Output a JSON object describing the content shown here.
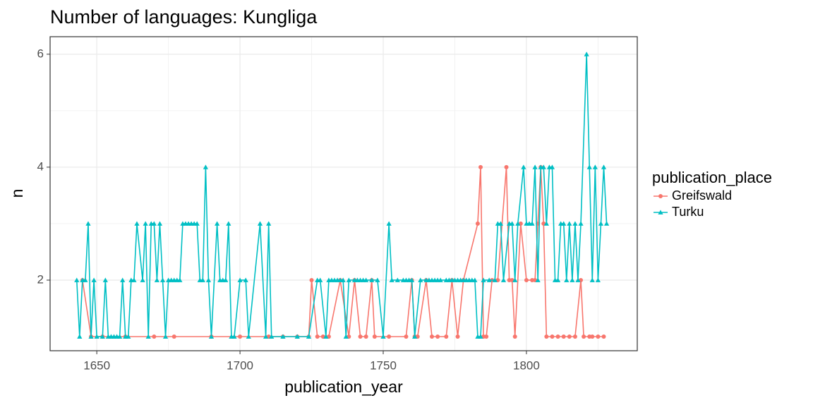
{
  "chart_data": {
    "type": "line",
    "title": "Number of languages: Kungliga",
    "x_label": "publication_year",
    "y_label": "n",
    "legend_title": "publication_place",
    "legend_position": "right",
    "xlim": [
      1633.7,
      1838.7
    ],
    "ylim": [
      0.75,
      6.31
    ],
    "xticks": [
      1650,
      1700,
      1750,
      1800
    ],
    "yticks": [
      2,
      4,
      6
    ],
    "x_minor_ticks": [
      1675,
      1725,
      1775,
      1825
    ],
    "y_minor_ticks": [
      3,
      5
    ],
    "grid": true,
    "series": [
      {
        "name": "Greifswald",
        "color": "#f8766d",
        "marker": "circle",
        "x": [
          1645,
          1648,
          1652,
          1660,
          1670,
          1677,
          1690,
          1700,
          1710,
          1715,
          1720,
          1724,
          1725,
          1727,
          1729,
          1731,
          1735,
          1738,
          1740,
          1742,
          1744,
          1746,
          1747,
          1752,
          1758,
          1760,
          1761,
          1762,
          1765,
          1767,
          1769,
          1772,
          1774,
          1776,
          1778,
          1783,
          1784,
          1785,
          1786,
          1788,
          1790,
          1793,
          1794,
          1795,
          1796,
          1798,
          1800,
          1802,
          1803,
          1804,
          1805,
          1806,
          1807,
          1809,
          1811,
          1813,
          1815,
          1817,
          1819,
          1820,
          1822,
          1823,
          1825,
          1827
        ],
        "values": [
          2,
          1,
          1,
          1,
          1,
          1,
          1,
          1,
          1,
          1,
          1,
          1,
          2,
          1,
          1,
          1,
          2,
          1,
          2,
          1,
          1,
          2,
          1,
          1,
          1,
          2,
          1,
          1,
          2,
          1,
          1,
          1,
          2,
          1,
          2,
          3,
          4,
          1,
          1,
          2,
          2,
          4,
          2,
          2,
          1,
          3,
          2,
          2,
          2,
          3,
          4,
          3,
          1,
          1,
          1,
          1,
          1,
          1,
          2,
          1,
          1,
          1,
          1,
          1
        ]
      },
      {
        "name": "Turku",
        "color": "#00bfc4",
        "marker": "triangle",
        "x": [
          1643,
          1644,
          1645,
          1646,
          1647,
          1648,
          1649,
          1650,
          1652,
          1653,
          1654,
          1655,
          1656,
          1657,
          1658,
          1659,
          1660,
          1661,
          1662,
          1663,
          1664,
          1666,
          1667,
          1668,
          1669,
          1670,
          1671,
          1672,
          1673,
          1674,
          1675,
          1676,
          1677,
          1678,
          1679,
          1680,
          1681,
          1682,
          1683,
          1684,
          1685,
          1686,
          1687,
          1688,
          1689,
          1690,
          1692,
          1693,
          1694,
          1695,
          1696,
          1697,
          1698,
          1700,
          1702,
          1703,
          1707,
          1709,
          1710,
          1711,
          1715,
          1720,
          1724,
          1727,
          1728,
          1730,
          1731,
          1732,
          1733,
          1734,
          1735,
          1736,
          1737,
          1738,
          1740,
          1741,
          1742,
          1743,
          1744,
          1746,
          1748,
          1750,
          1752,
          1753,
          1755,
          1757,
          1758,
          1759,
          1760,
          1761,
          1763,
          1765,
          1766,
          1767,
          1768,
          1769,
          1770,
          1772,
          1773,
          1774,
          1775,
          1776,
          1777,
          1778,
          1779,
          1780,
          1781,
          1782,
          1783,
          1784,
          1785,
          1787,
          1789,
          1790,
          1791,
          1792,
          1794,
          1795,
          1796,
          1797,
          1799,
          1800,
          1801,
          1802,
          1803,
          1804,
          1805,
          1806,
          1807,
          1808,
          1809,
          1810,
          1811,
          1812,
          1813,
          1814,
          1815,
          1816,
          1817,
          1818,
          1819,
          1821,
          1822,
          1823,
          1824,
          1825,
          1826,
          1827,
          1828
        ],
        "values": [
          2,
          1,
          2,
          2,
          3,
          1,
          2,
          1,
          1,
          2,
          1,
          1,
          1,
          1,
          1,
          2,
          1,
          1,
          2,
          2,
          3,
          2,
          3,
          1,
          3,
          3,
          2,
          3,
          2,
          1,
          2,
          2,
          2,
          2,
          2,
          3,
          3,
          3,
          3,
          3,
          3,
          2,
          2,
          4,
          2,
          1,
          3,
          2,
          2,
          2,
          3,
          1,
          1,
          2,
          2,
          1,
          3,
          1,
          3,
          1,
          1,
          1,
          1,
          2,
          2,
          1,
          2,
          2,
          2,
          2,
          2,
          2,
          1,
          2,
          2,
          2,
          2,
          2,
          2,
          2,
          2,
          1,
          3,
          2,
          2,
          2,
          2,
          2,
          2,
          1,
          2,
          2,
          2,
          2,
          2,
          2,
          2,
          2,
          2,
          2,
          2,
          2,
          2,
          2,
          2,
          2,
          2,
          2,
          1,
          1,
          2,
          2,
          2,
          3,
          3,
          2,
          3,
          3,
          2,
          3,
          4,
          3,
          3,
          3,
          4,
          2,
          4,
          4,
          3,
          4,
          4,
          2,
          2,
          3,
          3,
          2,
          3,
          2,
          3,
          2,
          3,
          6,
          4,
          2,
          4,
          2,
          3,
          4,
          3
        ]
      }
    ]
  }
}
